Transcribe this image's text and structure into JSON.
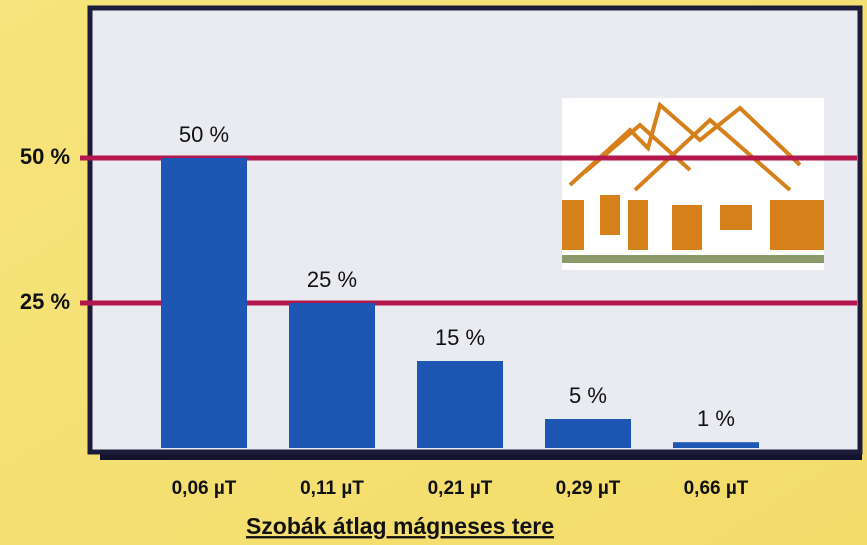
{
  "chart_data": {
    "type": "bar",
    "title": "Szobák átlag mágneses tere",
    "categories": [
      "0,06 µT",
      "0,11 µT",
      "0,21 µT",
      "0,29 µT",
      "0,66 µT"
    ],
    "values": [
      50,
      25,
      15,
      5,
      1
    ],
    "value_labels": [
      "50 %",
      "25 %",
      "15 %",
      "5 %",
      "1 %"
    ],
    "color": "#1d57b3",
    "grid_color": "#b3174c",
    "ylim": [
      0,
      75
    ],
    "yticks": [
      {
        "value": 25,
        "label": "25 %"
      },
      {
        "value": 50,
        "label": "50 %"
      }
    ],
    "grid": true
  }
}
